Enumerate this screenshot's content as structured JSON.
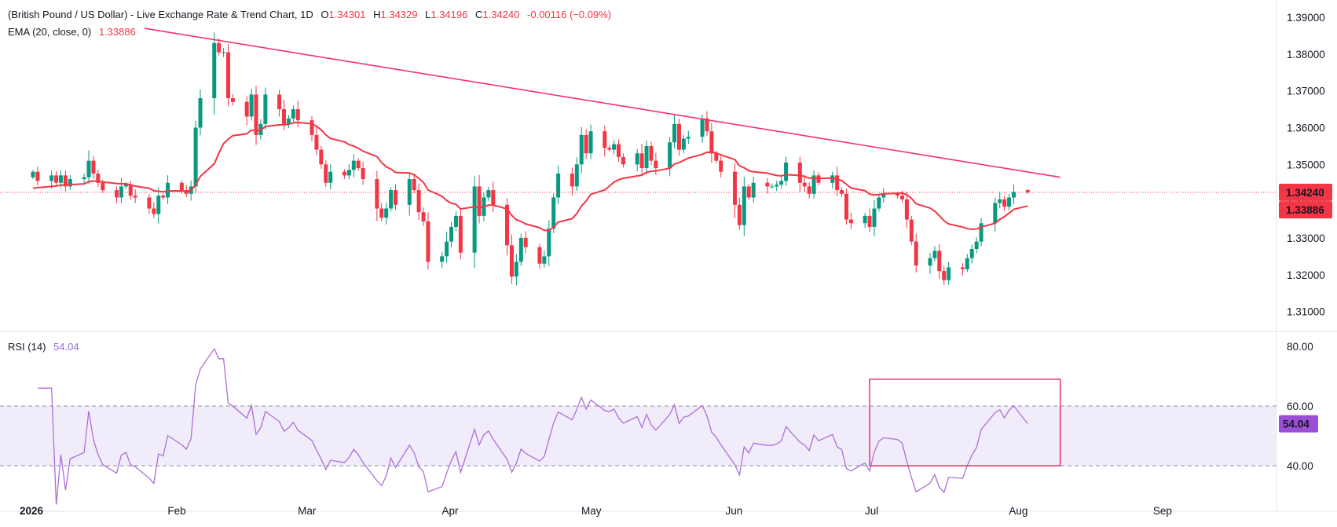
{
  "header": {
    "title": "(British Pound / US Dollar) - Live Exchange Rate & Trend Chart, 1D",
    "o_label": "O",
    "o_value": "1.34301",
    "h_label": "H",
    "h_value": "1.34329",
    "l_label": "L",
    "l_value": "1.34196",
    "c_label": "C",
    "c_value": "1.34240",
    "change": "-0.00116 (−0.09%)"
  },
  "ema_legend": {
    "label": "EMA (20, close, 0)",
    "value": "1.33886"
  },
  "rsi_legend": {
    "label": "RSI (14)",
    "value": "54.04"
  },
  "price_axis": {
    "ticks": [
      "1.39000",
      "1.38000",
      "1.37000",
      "1.36000",
      "1.35000",
      "1.34000",
      "1.33000",
      "1.32000",
      "1.31000"
    ],
    "last_price_label": "1.34240",
    "ema_price_label": "1.33886"
  },
  "rsi_axis": {
    "ticks": [
      "80.00",
      "60.00",
      "40.00"
    ],
    "current_label": "54.04"
  },
  "time_axis": {
    "labels": [
      "2026",
      "Feb",
      "Mar",
      "Apr",
      "May",
      "Jun",
      "Jul",
      "Aug",
      "Sep"
    ]
  },
  "colors": {
    "up": "#089981",
    "down": "#f23645",
    "ema": "#f23645",
    "trendline": "#f7316a",
    "rsi": "#ad6fd6",
    "rsi_band": "#f1ecfa",
    "highlight_box": "#e6336b",
    "last_price_line": "#f23645"
  },
  "chart_data": [
    {
      "type": "candlestick",
      "title": "(British Pound / US Dollar) - Live Exchange Rate & Trend Chart, 1D",
      "ylim": [
        1.305,
        1.393
      ],
      "start_date": "2026-01-01",
      "end_date": "2026-08-03",
      "x_ticks": [
        "2026",
        "Feb",
        "Mar",
        "Apr",
        "May",
        "Jun",
        "Jul",
        "Aug",
        "Sep"
      ],
      "y_ticks": [
        1.39,
        1.38,
        1.37,
        1.36,
        1.35,
        1.34,
        1.33,
        1.32,
        1.31
      ],
      "close": [
        1.348,
        1.3455,
        1.347,
        1.345,
        1.347,
        1.344,
        1.346,
        1.3465,
        1.351,
        1.3475,
        1.345,
        1.343,
        1.341,
        1.344,
        1.3445,
        1.3415,
        1.341,
        1.338,
        1.3365,
        1.3415,
        1.341,
        1.345,
        1.343,
        1.342,
        1.344,
        1.36,
        1.368,
        1.383,
        1.3805,
        1.3805,
        1.368,
        1.367,
        1.363,
        1.369,
        1.358,
        1.361,
        1.369,
        1.365,
        1.361,
        1.3625,
        1.365,
        1.362,
        1.358,
        1.354,
        1.35,
        1.345,
        1.348,
        1.347,
        1.3485,
        1.351,
        1.349,
        1.346,
        1.338,
        1.3355,
        1.338,
        1.343,
        1.339,
        1.346,
        1.343,
        1.337,
        1.3345,
        1.3235,
        1.325,
        1.329,
        1.333,
        1.336,
        1.326,
        1.344,
        1.336,
        1.341,
        1.343,
        1.339,
        1.328,
        1.3195,
        1.3235,
        1.33,
        1.3275,
        1.323,
        1.325,
        1.3325,
        1.341,
        1.3475,
        1.344,
        1.35,
        1.358,
        1.353,
        1.359,
        1.3545,
        1.354,
        1.3555,
        1.352,
        1.35,
        1.353,
        1.349,
        1.355,
        1.351,
        1.349,
        1.356,
        1.361,
        1.354,
        1.357,
        1.3575,
        1.3625,
        1.359,
        1.353,
        1.351,
        1.348,
        1.339,
        1.3335,
        1.344,
        1.341,
        1.345,
        1.344,
        1.344,
        1.3445,
        1.3455,
        1.3505,
        1.345,
        1.344,
        1.342,
        1.347,
        1.345,
        1.347,
        1.343,
        1.342,
        1.335,
        1.334,
        1.336,
        1.333,
        1.338,
        1.341,
        1.342,
        1.3415,
        1.3405,
        1.335,
        1.329,
        1.3225,
        1.3245,
        1.3265,
        1.321,
        1.3185,
        1.322,
        1.3215,
        1.3245,
        1.327,
        1.329,
        1.334,
        1.3395,
        1.3405,
        1.3385,
        1.341,
        1.3425,
        1.3425,
        1.34,
        1.336,
        1.339,
        1.35,
        1.3525,
        1.346,
        1.3445,
        1.3435,
        1.341,
        1.3395,
        1.3355,
        1.33,
        1.332,
        1.3295,
        1.3285,
        1.3375,
        1.3475,
        1.348,
        1.344,
        1.3424
      ],
      "ema20_last": 1.33886,
      "trendline": [
        [
          1.387,
          "2026-01-25"
        ],
        [
          1.3465,
          "2026-08-10"
        ]
      ]
    },
    {
      "type": "line",
      "title": "RSI (14)",
      "ylim": [
        25,
        85
      ],
      "y_ticks": [
        80,
        60,
        40
      ],
      "band": [
        40,
        60
      ],
      "last_value": 54.04
    }
  ]
}
